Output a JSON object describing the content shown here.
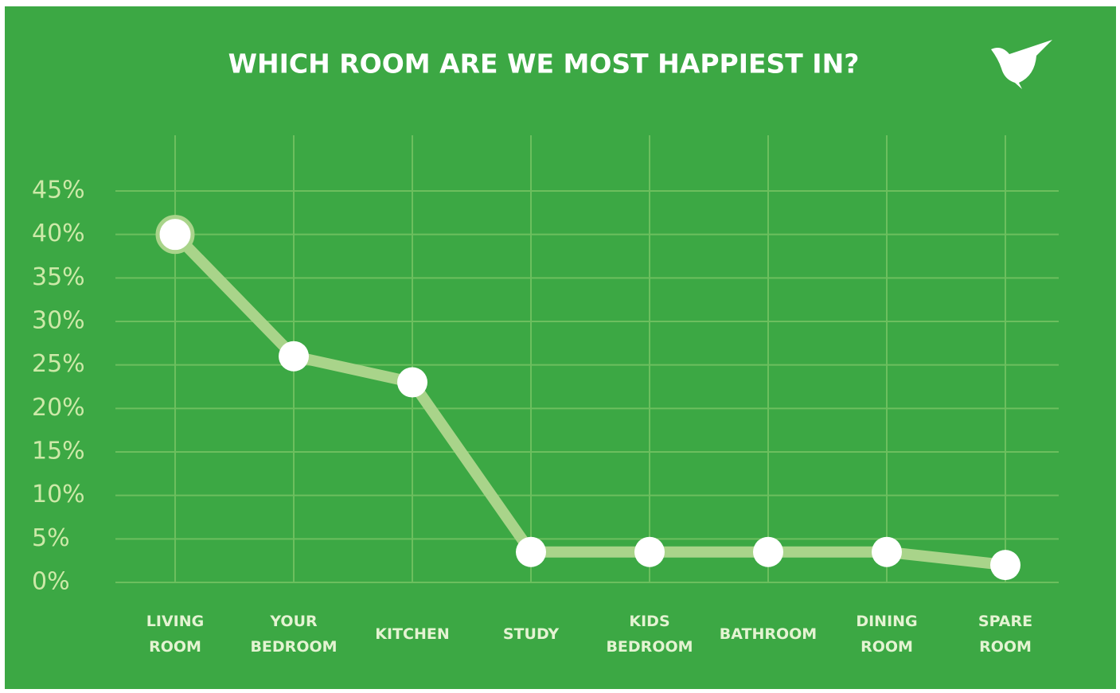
{
  "chart_data": {
    "type": "line",
    "title": "WHICH ROOM ARE WE MOST HAPPIEST IN?",
    "categories": [
      "LIVING ROOM",
      "YOUR BEDROOM",
      "KITCHEN",
      "STUDY",
      "KIDS BEDROOM",
      "BATHROOM",
      "DINING ROOM",
      "SPARE ROOM"
    ],
    "values": [
      40,
      26,
      23,
      3.5,
      3.5,
      3.5,
      3.5,
      2
    ],
    "color": "#a9d48a",
    "ylim": [
      0,
      45
    ],
    "yticks": [
      {
        "value": 0,
        "label": "0%"
      },
      {
        "value": 5,
        "label": "5%"
      },
      {
        "value": 10,
        "label": "10%"
      },
      {
        "value": 15,
        "label": "15%"
      },
      {
        "value": 20,
        "label": "20%"
      },
      {
        "value": 25,
        "label": "25%"
      },
      {
        "value": 30,
        "label": "30%"
      },
      {
        "value": 35,
        "label": "35%"
      },
      {
        "value": 40,
        "label": "40%"
      },
      {
        "value": 45,
        "label": "45%"
      }
    ],
    "grid": true
  }
}
